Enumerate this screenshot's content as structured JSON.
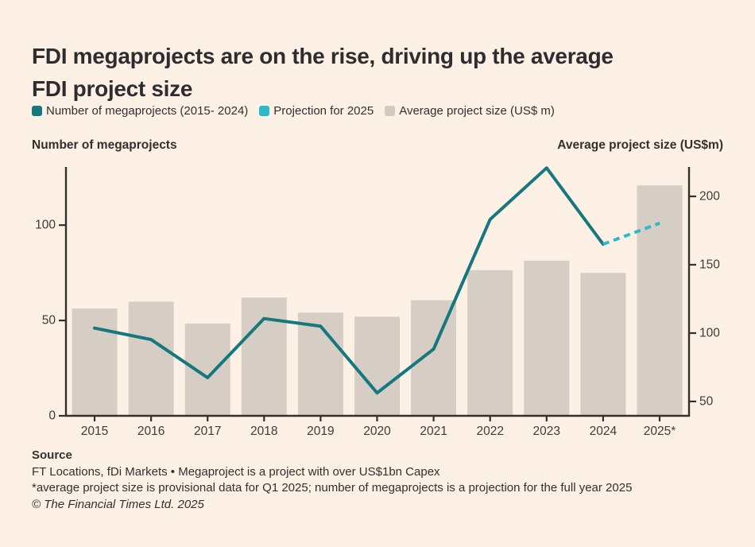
{
  "title_lines": [
    "FDI megaprojects are on the rise, driving up the average",
    "FDI project size"
  ],
  "legend": {
    "items": [
      {
        "label": "Number of megaprojects (2015- 2024)",
        "color": "#15787F"
      },
      {
        "label": "Projection for 2025",
        "color": "#2BBAC8"
      },
      {
        "label": "Average project size (US$ m)",
        "color": "#D2C9C1"
      }
    ]
  },
  "axis_titles": {
    "left": "Number of megaprojects",
    "right": "Average project size (US$m)"
  },
  "footer": {
    "source_label": "Source",
    "source_text": "FT Locations, fDi Markets • Megaproject is a project with over US$1bn Capex",
    "footnote": "*average project size is provisional data for Q1 2025; number of megaprojects is a projection for the full year 2025",
    "copyright": "© The Financial Times Ltd. 2025"
  },
  "colors": {
    "background": "#FDF0E4",
    "text": "#33302E",
    "line": "#15787F",
    "projection": "#2BBAC8",
    "bar": "#D6CDC4",
    "axis": "#33302E",
    "tick_text": "#3F3B38"
  },
  "chart_data": {
    "type": "combo",
    "categories": [
      "2015",
      "2016",
      "2017",
      "2018",
      "2019",
      "2020",
      "2021",
      "2022",
      "2023",
      "2024",
      "2025*"
    ],
    "series": [
      {
        "name": "Number of megaprojects (2015- 2024)",
        "type": "line",
        "axis": "left",
        "color": "#15787F",
        "values": [
          46,
          40,
          20,
          51,
          47,
          12,
          35,
          103,
          130,
          90,
          null
        ]
      },
      {
        "name": "Projection for 2025",
        "type": "line",
        "style": "dashed",
        "axis": "left",
        "color": "#2BBAC8",
        "values": [
          null,
          null,
          null,
          null,
          null,
          null,
          null,
          null,
          null,
          90,
          101
        ]
      },
      {
        "name": "Average project size (US$ m)",
        "type": "bar",
        "axis": "right",
        "color": "#D6CDC4",
        "values": [
          118,
          123,
          107,
          126,
          115,
          112,
          124,
          146,
          153,
          144,
          208
        ]
      }
    ],
    "left_axis": {
      "title": "Number of megaprojects",
      "ticks": [
        0,
        50,
        100
      ],
      "range": [
        0,
        130.5
      ]
    },
    "right_axis": {
      "title": "Average project size (US$m)",
      "ticks": [
        50,
        100,
        150,
        200
      ],
      "range": [
        39.5,
        221.5
      ]
    },
    "grid": false,
    "legend_position": "top"
  }
}
